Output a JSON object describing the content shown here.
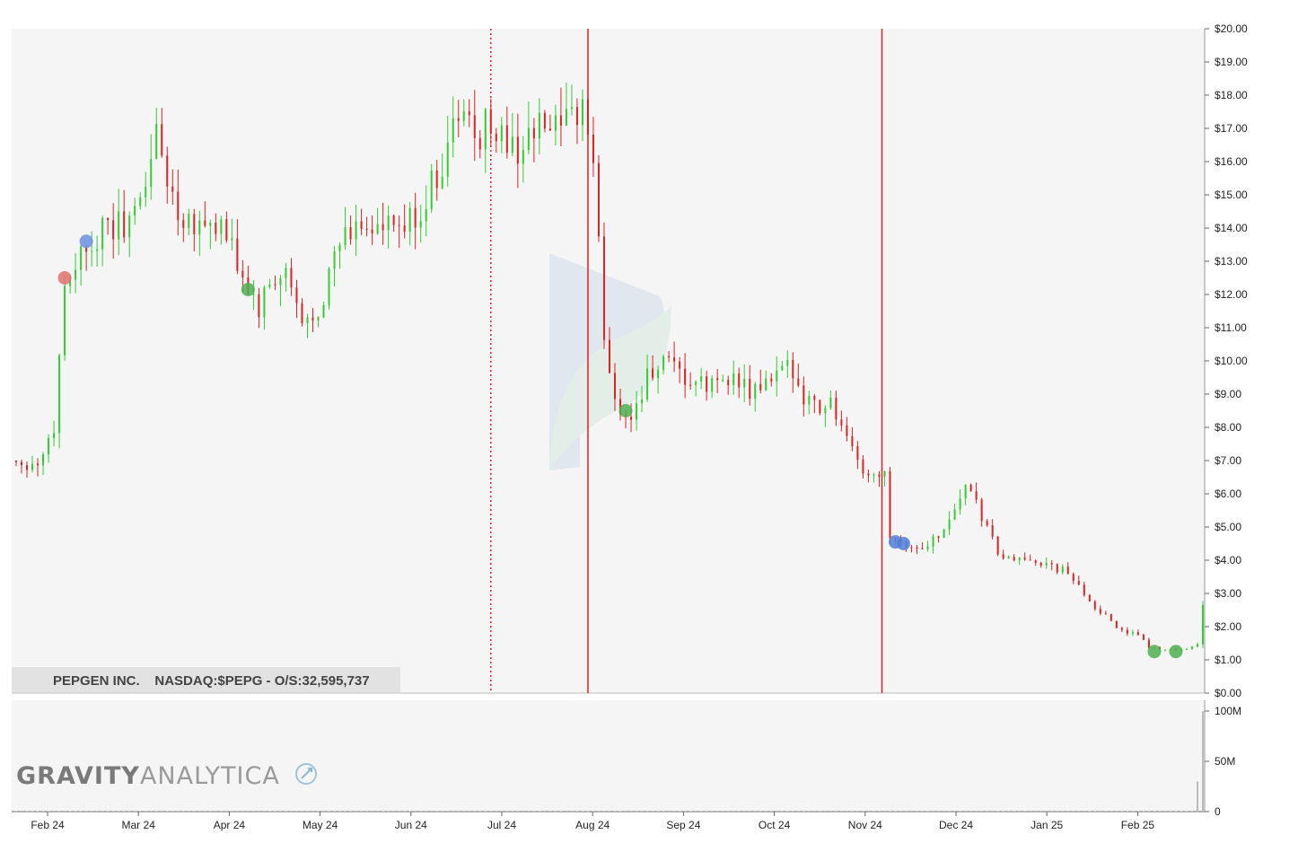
{
  "chart_data": {
    "type": "candlestick",
    "stock_label": "PEPGEN INC.    NASDAQ:$PEPG - O/S:32,595,737",
    "brand": {
      "bold": "GRAVITY",
      "light": "ANALYTICA"
    },
    "ylim": [
      0,
      20
    ],
    "y_ticks": [
      "$0.00",
      "$1.00",
      "$2.00",
      "$3.00",
      "$4.00",
      "$5.00",
      "$6.00",
      "$7.00",
      "$8.00",
      "$9.00",
      "$10.00",
      "$11.00",
      "$12.00",
      "$13.00",
      "$14.00",
      "$15.00",
      "$16.00",
      "$17.00",
      "$18.00",
      "$19.00",
      "$20.00"
    ],
    "volume_ylim": [
      0,
      100
    ],
    "volume_ticks": [
      "0",
      "50M",
      "100M"
    ],
    "x_ticks": [
      "Feb 24",
      "Mar 24",
      "Apr 24",
      "May 24",
      "Jun 24",
      "Jul 24",
      "Aug 24",
      "Sep 24",
      "Oct 24",
      "Nov 24",
      "Dec 24",
      "Jan 25",
      "Feb 25"
    ],
    "price_path": [
      [
        0,
        7.0
      ],
      [
        4,
        6.9
      ],
      [
        7,
        8.0
      ],
      [
        9,
        12.3
      ],
      [
        11,
        13.0
      ],
      [
        14,
        13.7
      ],
      [
        18,
        14.0
      ],
      [
        22,
        14.3
      ],
      [
        26,
        16.8
      ],
      [
        28,
        15.5
      ],
      [
        30,
        14.5
      ],
      [
        34,
        14.2
      ],
      [
        38,
        14.0
      ],
      [
        42,
        12.5
      ],
      [
        45,
        11.5
      ],
      [
        47,
        12.2
      ],
      [
        50,
        12.6
      ],
      [
        53,
        11.0
      ],
      [
        56,
        11.6
      ],
      [
        60,
        13.5
      ],
      [
        64,
        14.2
      ],
      [
        68,
        13.9
      ],
      [
        72,
        14.0
      ],
      [
        75,
        14.5
      ],
      [
        79,
        16.0
      ],
      [
        82,
        17.5
      ],
      [
        85,
        16.8
      ],
      [
        88,
        17.2
      ],
      [
        92,
        16.3
      ],
      [
        95,
        16.7
      ],
      [
        98,
        17.0
      ],
      [
        101,
        16.8
      ],
      [
        103,
        17.2
      ],
      [
        105,
        17.8
      ],
      [
        107,
        16.0
      ],
      [
        109,
        10.8
      ],
      [
        111,
        8.8
      ],
      [
        114,
        8.3
      ],
      [
        117,
        9.5
      ],
      [
        120,
        9.9
      ],
      [
        124,
        9.4
      ],
      [
        128,
        9.2
      ],
      [
        132,
        9.6
      ],
      [
        136,
        9.0
      ],
      [
        140,
        9.4
      ],
      [
        144,
        9.8
      ],
      [
        146,
        9.0
      ],
      [
        149,
        8.6
      ],
      [
        151,
        8.8
      ],
      [
        154,
        7.5
      ],
      [
        158,
        6.5
      ],
      [
        161,
        6.8
      ],
      [
        162,
        4.8
      ],
      [
        164,
        4.6
      ],
      [
        167,
        4.3
      ],
      [
        170,
        4.6
      ],
      [
        173,
        5.2
      ],
      [
        176,
        6.3
      ],
      [
        179,
        5.3
      ],
      [
        182,
        4.2
      ],
      [
        185,
        3.9
      ],
      [
        188,
        4.1
      ],
      [
        191,
        3.8
      ],
      [
        194,
        3.7
      ],
      [
        197,
        3.2
      ],
      [
        200,
        2.6
      ],
      [
        204,
        2.0
      ],
      [
        208,
        1.7
      ],
      [
        210,
        1.4
      ],
      [
        214,
        1.3
      ],
      [
        217,
        1.35
      ],
      [
        219,
        1.45
      ],
      [
        220,
        2.6
      ]
    ],
    "signals": [
      {
        "day": 9,
        "price": 12.5,
        "color": "#e07070"
      },
      {
        "day": 13,
        "price": 13.6,
        "color": "#6b8fe0"
      },
      {
        "day": 43,
        "price": 12.15,
        "color": "#4caf50"
      },
      {
        "day": 113,
        "price": 8.5,
        "color": "#4caf50"
      },
      {
        "day": 163,
        "price": 4.55,
        "color": "#4f7fd6"
      },
      {
        "day": 164.5,
        "price": 4.5,
        "color": "#4f7fd6"
      },
      {
        "day": 211,
        "price": 1.25,
        "color": "#4caf50"
      },
      {
        "day": 215,
        "price": 1.25,
        "color": "#4caf50"
      }
    ],
    "event_lines": [
      {
        "day": 88,
        "style": "dotted"
      },
      {
        "day": 106,
        "style": "solid"
      },
      {
        "day": 160.5,
        "style": "solid"
      }
    ],
    "colors": {
      "up": "#33cc33",
      "down": "#dd2222",
      "event": "#e02020",
      "background": "#f5f5f5",
      "volume": "#bbbbbb"
    }
  }
}
